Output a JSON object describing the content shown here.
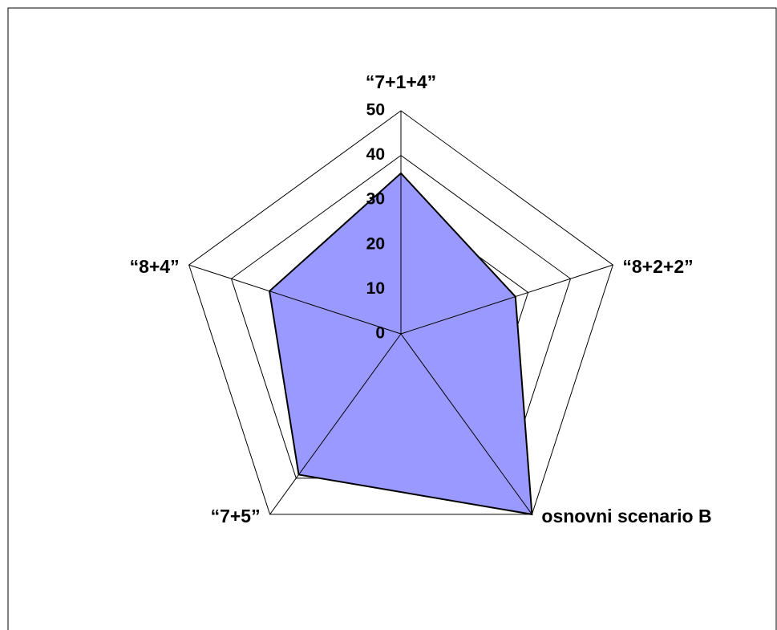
{
  "chart_data": {
    "type": "radar",
    "categories": [
      "“7+1+4”",
      "“8+2+2”",
      "osnovni scenario B",
      "“7+5”",
      "“8+4”"
    ],
    "series": [
      {
        "color": "#9999ff",
        "values": [
          36,
          27,
          50,
          39,
          31
        ]
      }
    ],
    "ylim": [
      0,
      50
    ],
    "yticks": [
      0,
      10,
      20,
      30,
      40,
      50
    ],
    "grid": true
  }
}
